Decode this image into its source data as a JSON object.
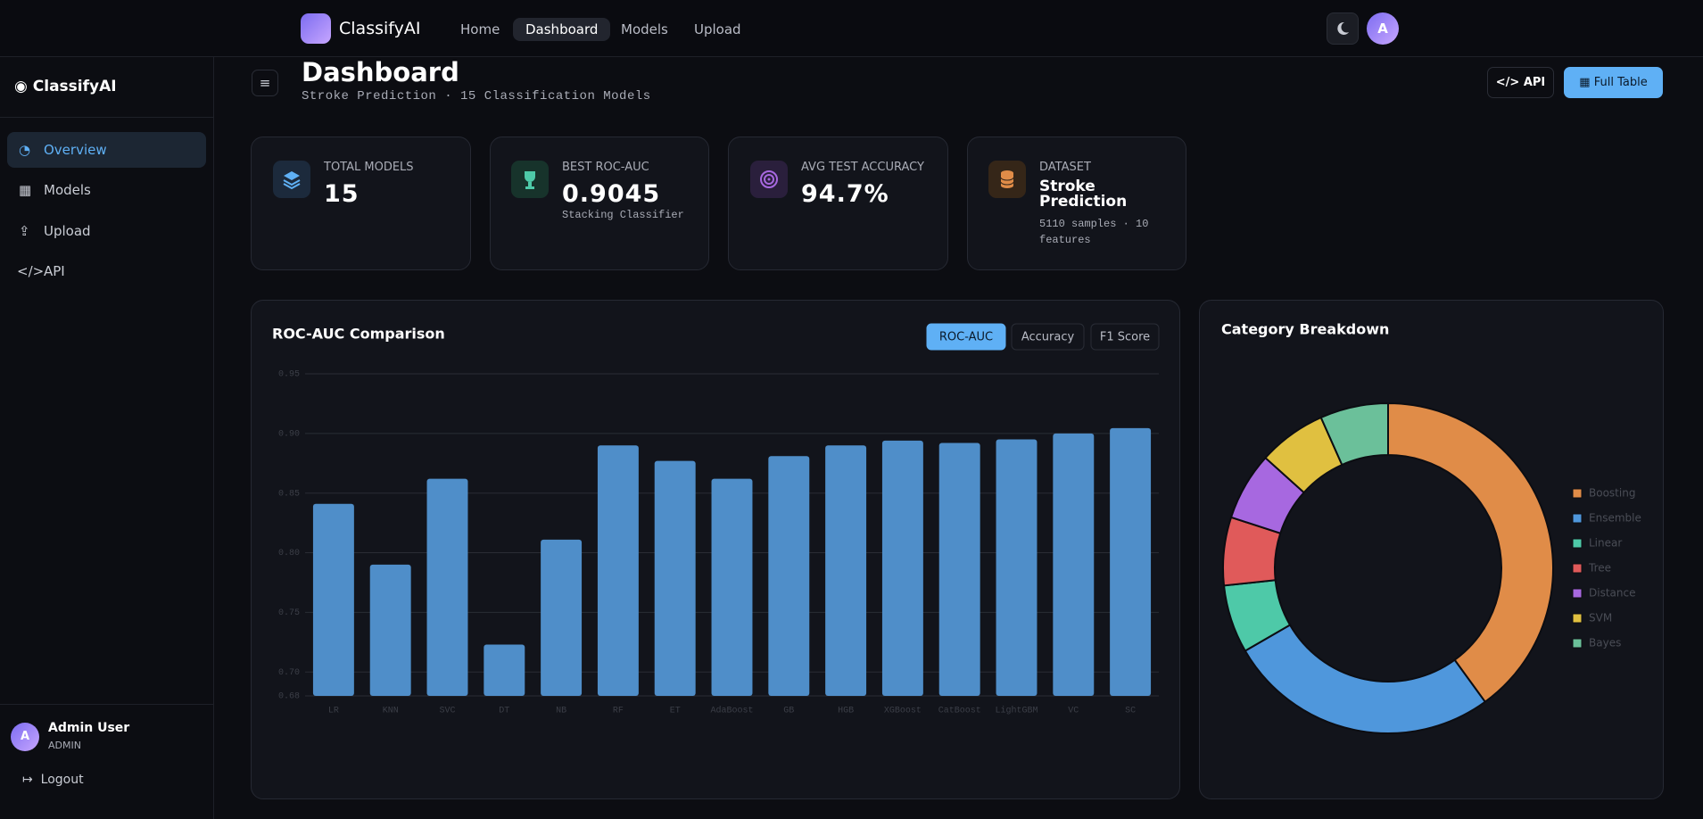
{
  "nav": {
    "brand": "ClassifyAI",
    "links": [
      "Home",
      "Dashboard",
      "Models",
      "Upload"
    ],
    "avatar": "A"
  },
  "sidebar": {
    "brand": "ClassifyAI",
    "items": [
      "Overview",
      "Models",
      "Upload",
      "API"
    ],
    "user": {
      "name": "Admin User",
      "role": "ADMIN",
      "initial": "A"
    },
    "logout": "Logout"
  },
  "header": {
    "title": "Dashboard",
    "subtitle": "Stroke Prediction · 15 Classification Models",
    "buttons": [
      "API",
      "Full Table"
    ]
  },
  "stats": [
    {
      "label": "TOTAL MODELS",
      "value": "15"
    },
    {
      "label": "BEST ROC-AUC",
      "value": "0.9045",
      "note": "Stacking Classifier"
    },
    {
      "label": "AVG TEST ACCURACY",
      "value": "94.7%"
    },
    {
      "label": "DATASET",
      "value": "Stroke Prediction",
      "note": "5110 samples · 10 features"
    }
  ],
  "chart_data": [
    {
      "type": "bar",
      "title": "ROC-AUC Comparison",
      "tabs": [
        "ROC-AUC",
        "Accuracy",
        "F1 Score"
      ],
      "categories": [
        "LR",
        "KNN",
        "SVC",
        "DT",
        "NB",
        "RF",
        "ET",
        "AdaBoost",
        "GB",
        "HGB",
        "XGBoost",
        "CatBoost",
        "LightGBM",
        "VC",
        "SC"
      ],
      "values": [
        0.841,
        0.79,
        0.862,
        0.723,
        0.811,
        0.89,
        0.877,
        0.862,
        0.881,
        0.89,
        0.894,
        0.892,
        0.895,
        0.9,
        0.9045
      ],
      "color": "#4f8ec9",
      "ylim": [
        0.68,
        0.95
      ],
      "yticks": [
        0.68,
        {
          "value": 0.7,
          "label": "0.70"
        },
        0.75,
        {
          "value": 0.8,
          "label": "0.80"
        },
        0.85,
        {
          "value": 0.9,
          "label": "0.90"
        },
        0.95
      ],
      "grid": true
    },
    {
      "type": "pie",
      "title": "Category Breakdown",
      "categories": [
        "Boosting",
        "Ensemble",
        "Linear",
        "Tree",
        "Distance",
        "SVM",
        "Bayes"
      ],
      "values": [
        6,
        4,
        1,
        1,
        1,
        1,
        1
      ],
      "colors": [
        "#e08c48",
        "#4f97dc",
        "#4ec9a8",
        "#e05a5a",
        "#a768e0",
        "#e0c040",
        "#6bc09a"
      ],
      "legend": "right"
    }
  ]
}
